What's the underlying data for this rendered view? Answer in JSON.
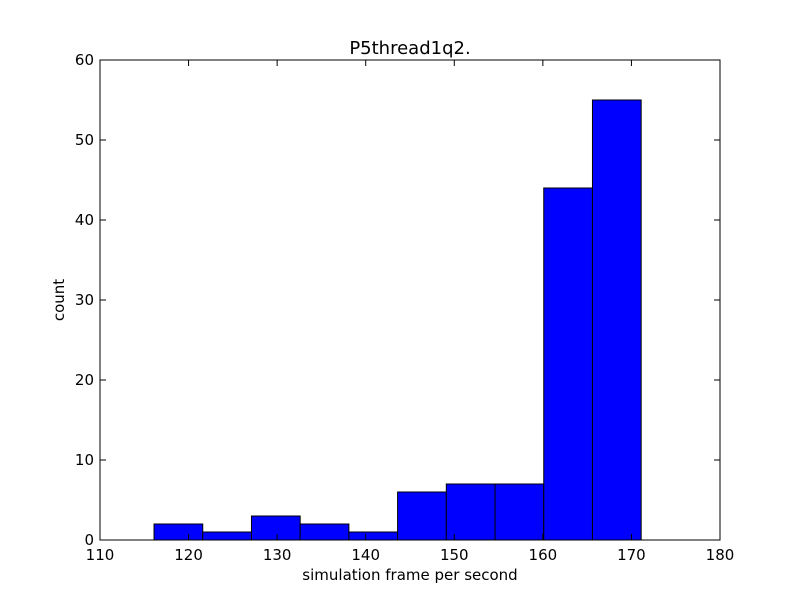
{
  "chart_data": {
    "type": "bar",
    "title": "P5thread1q2.",
    "xlabel": "simulation frame per second",
    "ylabel": "count",
    "xlim": [
      110,
      180
    ],
    "ylim": [
      0,
      60
    ],
    "xticks": [
      110,
      120,
      130,
      140,
      150,
      160,
      170,
      180
    ],
    "yticks": [
      0,
      10,
      20,
      30,
      40,
      50,
      60
    ],
    "bin_edges": [
      116.1,
      121.6,
      127.1,
      132.6,
      138.1,
      143.6,
      149.1,
      154.6,
      160.1,
      165.6,
      171.1
    ],
    "values": [
      2,
      1,
      3,
      2,
      1,
      6,
      7,
      7,
      44,
      55
    ],
    "bar_color": "#0000ff",
    "edge_color": "#000000",
    "grid": false,
    "legend": "none"
  }
}
